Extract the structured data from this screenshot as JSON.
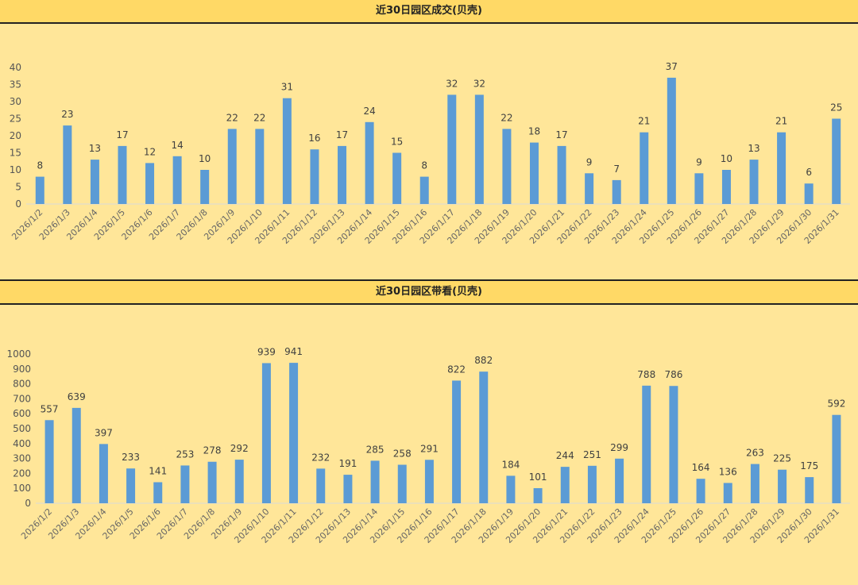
{
  "chart_data": [
    {
      "type": "bar",
      "title": "近30日园区成交(贝壳)",
      "categories": [
        "2026/1/2",
        "2026/1/3",
        "2026/1/4",
        "2026/1/5",
        "2026/1/6",
        "2026/1/7",
        "2026/1/8",
        "2026/1/9",
        "2026/1/10",
        "2026/1/11",
        "2026/1/12",
        "2026/1/13",
        "2026/1/14",
        "2026/1/15",
        "2026/1/16",
        "2026/1/17",
        "2026/1/18",
        "2026/1/19",
        "2026/1/20",
        "2026/1/21",
        "2026/1/22",
        "2026/1/23",
        "2026/1/24",
        "2026/1/25",
        "2026/1/26",
        "2026/1/27",
        "2026/1/28",
        "2026/1/29",
        "2026/1/30",
        "2026/1/31"
      ],
      "values": [
        8,
        23,
        13,
        17,
        12,
        14,
        10,
        22,
        22,
        31,
        16,
        17,
        24,
        15,
        8,
        32,
        32,
        22,
        18,
        17,
        9,
        7,
        21,
        37,
        9,
        10,
        13,
        21,
        6,
        25
      ],
      "yticks": [
        0,
        5,
        10,
        15,
        20,
        25,
        30,
        35,
        40
      ],
      "ylim": [
        0,
        40
      ],
      "xlabel": "",
      "ylabel": "",
      "color": "#5B9BD5"
    },
    {
      "type": "bar",
      "title": "近30日园区带看(贝壳)",
      "categories": [
        "2026/1/2",
        "2026/1/3",
        "2026/1/4",
        "2026/1/5",
        "2026/1/6",
        "2026/1/7",
        "2026/1/8",
        "2026/1/9",
        "2026/1/10",
        "2026/1/11",
        "2026/1/12",
        "2026/1/13",
        "2026/1/14",
        "2026/1/15",
        "2026/1/16",
        "2026/1/17",
        "2026/1/18",
        "2026/1/19",
        "2026/1/20",
        "2026/1/21",
        "2026/1/22",
        "2026/1/23",
        "2026/1/24",
        "2026/1/25",
        "2026/1/26",
        "2026/1/27",
        "2026/1/28",
        "2026/1/29",
        "2026/1/30",
        "2026/1/31"
      ],
      "values": [
        557,
        639,
        397,
        233,
        141,
        253,
        278,
        292,
        939,
        941,
        232,
        191,
        285,
        258,
        291,
        822,
        882,
        184,
        101,
        244,
        251,
        299,
        788,
        786,
        164,
        136,
        263,
        225,
        175,
        592
      ],
      "yticks": [
        0,
        100,
        200,
        300,
        400,
        500,
        600,
        700,
        800,
        900,
        1000
      ],
      "ylim": [
        0,
        1000
      ],
      "xlabel": "",
      "ylabel": "",
      "color": "#5B9BD5"
    }
  ]
}
